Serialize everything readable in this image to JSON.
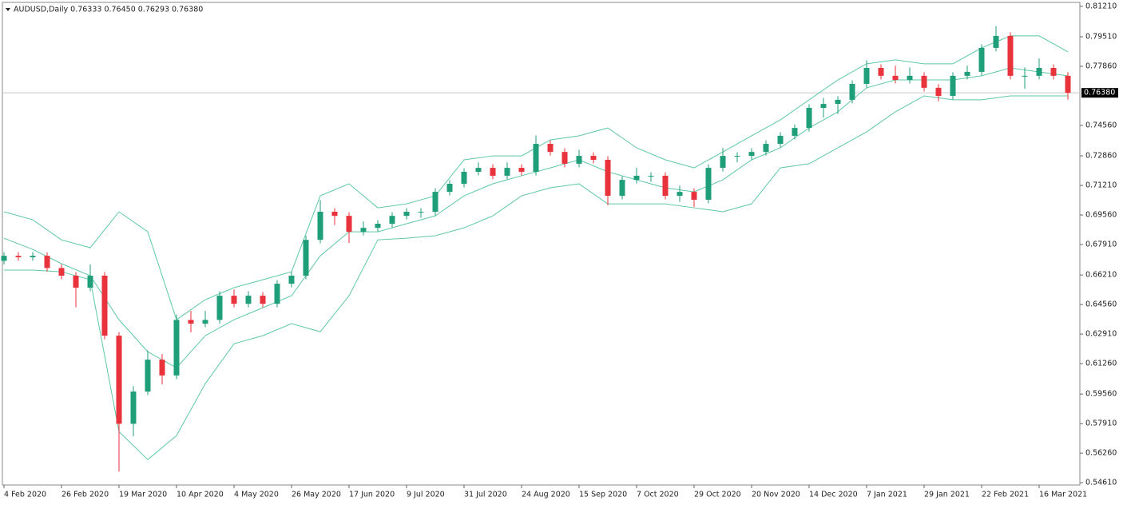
{
  "chart_data": {
    "type": "candlestick",
    "title": "AUDUSD,Daily  0.76333 0.76450 0.76293 0.76380",
    "up_color": "#1f9e7a",
    "down_color": "#e8323c",
    "candles": {
      "x": [
        0,
        4,
        8,
        12,
        16,
        20,
        24,
        28,
        32,
        36,
        40,
        44,
        48,
        52,
        56,
        60,
        64,
        68,
        72,
        76,
        80,
        84,
        88,
        92,
        96,
        100,
        104,
        108,
        112,
        116,
        120,
        124,
        128,
        132,
        136,
        140,
        144,
        148,
        152,
        156,
        160,
        164,
        168,
        172,
        176,
        180,
        184,
        188,
        192,
        196,
        200,
        204,
        208,
        212,
        216,
        220,
        224,
        228,
        232,
        236,
        240,
        244,
        248,
        252,
        256,
        260,
        264,
        268,
        272,
        276,
        280,
        284,
        288,
        292,
        296
      ],
      "open": [
        0.67,
        0.6728,
        0.672,
        0.6728,
        0.666,
        0.6617,
        0.655,
        0.6617,
        0.6282,
        0.579,
        0.597,
        0.6148,
        0.606,
        0.637,
        0.6349,
        0.637,
        0.6505,
        0.646,
        0.6505,
        0.646,
        0.6572,
        0.6617,
        0.6817,
        0.6974,
        0.6951,
        0.6862,
        0.6884,
        0.6907,
        0.6951,
        0.6974,
        0.6974,
        0.7085,
        0.713,
        0.7197,
        0.7219,
        0.7175,
        0.7219,
        0.7197,
        0.7353,
        0.7308,
        0.7242,
        0.7286,
        0.7264,
        0.7063,
        0.7152,
        0.7175,
        0.7175,
        0.7063,
        0.7085,
        0.7041,
        0.7219,
        0.7286,
        0.7286,
        0.7308,
        0.7353,
        0.7398,
        0.7442,
        0.7554,
        0.7576,
        0.7599,
        0.7688,
        0.7777,
        0.7733,
        0.771,
        0.7733,
        0.7666,
        0.7621,
        0.7733,
        0.7755,
        0.7889,
        0.7956,
        0.7733,
        0.7733,
        0.7777,
        0.7733
      ],
      "high": [
        0.6748,
        0.6748,
        0.6748,
        0.6748,
        0.668,
        0.6637,
        0.668,
        0.6637,
        0.6302,
        0.6,
        0.62,
        0.618,
        0.64,
        0.642,
        0.642,
        0.653,
        0.654,
        0.653,
        0.6525,
        0.6592,
        0.664,
        0.684,
        0.704,
        0.6994,
        0.6971,
        0.692,
        0.6927,
        0.6971,
        0.6994,
        0.6994,
        0.7105,
        0.715,
        0.7217,
        0.725,
        0.7239,
        0.725,
        0.7239,
        0.74,
        0.7373,
        0.7328,
        0.732,
        0.7306,
        0.7284,
        0.7172,
        0.722,
        0.7195,
        0.7195,
        0.712,
        0.7105,
        0.7239,
        0.733,
        0.7306,
        0.7328,
        0.7373,
        0.7418,
        0.7462,
        0.7574,
        0.761,
        0.7619,
        0.7708,
        0.782,
        0.7797,
        0.779,
        0.778,
        0.7753,
        0.7686,
        0.7753,
        0.779,
        0.7909,
        0.801,
        0.7976,
        0.778,
        0.783,
        0.7797,
        0.7753
      ],
      "low": [
        0.668,
        0.67,
        0.67,
        0.664,
        0.6597,
        0.644,
        0.653,
        0.6262,
        0.5523,
        0.572,
        0.595,
        0.601,
        0.604,
        0.63,
        0.6329,
        0.635,
        0.644,
        0.644,
        0.644,
        0.644,
        0.6552,
        0.6597,
        0.6797,
        0.69,
        0.68,
        0.6842,
        0.6864,
        0.6887,
        0.6931,
        0.694,
        0.6954,
        0.7065,
        0.711,
        0.7177,
        0.7155,
        0.7155,
        0.7177,
        0.7177,
        0.7288,
        0.7222,
        0.7222,
        0.7244,
        0.701,
        0.7043,
        0.7132,
        0.714,
        0.7043,
        0.703,
        0.7,
        0.7021,
        0.7199,
        0.725,
        0.7266,
        0.7288,
        0.7333,
        0.7378,
        0.7422,
        0.75,
        0.752,
        0.7579,
        0.7668,
        0.7713,
        0.769,
        0.769,
        0.7646,
        0.759,
        0.7601,
        0.7713,
        0.7735,
        0.7869,
        0.7713,
        0.766,
        0.7713,
        0.7713,
        0.76
      ],
      "close": [
        0.6728,
        0.672,
        0.6728,
        0.666,
        0.6617,
        0.655,
        0.6617,
        0.6282,
        0.579,
        0.597,
        0.6148,
        0.606,
        0.637,
        0.6349,
        0.637,
        0.6505,
        0.646,
        0.6505,
        0.646,
        0.6572,
        0.6617,
        0.6817,
        0.6974,
        0.6951,
        0.6862,
        0.6884,
        0.6907,
        0.6951,
        0.6974,
        0.6974,
        0.7085,
        0.713,
        0.7197,
        0.7219,
        0.7175,
        0.7219,
        0.7197,
        0.7353,
        0.7308,
        0.7242,
        0.7286,
        0.7264,
        0.7063,
        0.7152,
        0.7175,
        0.7175,
        0.7063,
        0.7085,
        0.7041,
        0.7219,
        0.7286,
        0.7286,
        0.7308,
        0.7353,
        0.7398,
        0.7442,
        0.7554,
        0.7576,
        0.7599,
        0.7688,
        0.7777,
        0.7733,
        0.771,
        0.7733,
        0.7666,
        0.7621,
        0.7733,
        0.7755,
        0.7889,
        0.7956,
        0.7733,
        0.7733,
        0.7777,
        0.7733,
        0.7638
      ]
    },
    "bands": {
      "color": "#5ec8a2",
      "x": [
        0,
        8,
        16,
        24,
        32,
        40,
        48,
        56,
        64,
        72,
        80,
        88,
        96,
        104,
        112,
        120,
        128,
        136,
        144,
        152,
        160,
        168,
        176,
        184,
        192,
        200,
        208,
        216,
        224,
        232,
        240,
        248,
        256,
        264,
        272,
        280,
        288,
        296
      ],
      "upper": [
        0.6974,
        0.6929,
        0.6817,
        0.6773,
        0.6974,
        0.6862,
        0.6371,
        0.6483,
        0.655,
        0.6594,
        0.6639,
        0.7063,
        0.713,
        0.6996,
        0.7018,
        0.7063,
        0.7264,
        0.7286,
        0.7286,
        0.7375,
        0.7398,
        0.7442,
        0.7331,
        0.7264,
        0.7219,
        0.7308,
        0.7398,
        0.7487,
        0.7599,
        0.771,
        0.78,
        0.7822,
        0.78,
        0.78,
        0.7889,
        0.7956,
        0.7956,
        0.7867
      ],
      "middle": [
        0.6826,
        0.6764,
        0.6684,
        0.6617,
        0.6371,
        0.6192,
        0.6103,
        0.6282,
        0.6371,
        0.6438,
        0.6505,
        0.6728,
        0.6862,
        0.6862,
        0.6907,
        0.6951,
        0.7063,
        0.713,
        0.7175,
        0.7219,
        0.7264,
        0.7197,
        0.7152,
        0.7108,
        0.7085,
        0.7152,
        0.7264,
        0.7331,
        0.7442,
        0.7532,
        0.7666,
        0.771,
        0.771,
        0.771,
        0.7733,
        0.7777,
        0.7755,
        0.7733
      ],
      "lower": [
        0.6648,
        0.6648,
        0.6639,
        0.6594,
        0.5746,
        0.559,
        0.5724,
        0.6014,
        0.6237,
        0.6282,
        0.6349,
        0.6304,
        0.6505,
        0.6817,
        0.6826,
        0.684,
        0.6884,
        0.6951,
        0.7063,
        0.7108,
        0.713,
        0.7018,
        0.7018,
        0.7018,
        0.6996,
        0.6974,
        0.7018,
        0.7219,
        0.7242,
        0.7331,
        0.742,
        0.7532,
        0.7621,
        0.7599,
        0.7599,
        0.7621,
        0.7621,
        0.7621
      ]
    },
    "current_price": {
      "value": 0.7638,
      "label": "0.76380"
    },
    "xlim": [
      0,
      299
    ],
    "ylim": [
      0.5457,
      0.8134
    ],
    "xticks": [
      {
        "value": 0,
        "label": "4 Feb 2020"
      },
      {
        "value": 16,
        "label": "26 Feb 2020"
      },
      {
        "value": 32,
        "label": "19 Mar 2020"
      },
      {
        "value": 48,
        "label": "10 Apr 2020"
      },
      {
        "value": 64,
        "label": "4 May 2020"
      },
      {
        "value": 80,
        "label": "26 May 2020"
      },
      {
        "value": 96,
        "label": "17 Jun 2020"
      },
      {
        "value": 112,
        "label": "9 Jul 2020"
      },
      {
        "value": 128,
        "label": "31 Jul 2020"
      },
      {
        "value": 144,
        "label": "24 Aug 2020"
      },
      {
        "value": 160,
        "label": "15 Sep 2020"
      },
      {
        "value": 176,
        "label": "7 Oct 2020"
      },
      {
        "value": 192,
        "label": "29 Oct 2020"
      },
      {
        "value": 208,
        "label": "20 Nov 2020"
      },
      {
        "value": 224,
        "label": "14 Dec 2020"
      },
      {
        "value": 240,
        "label": "7 Jan 2021"
      },
      {
        "value": 256,
        "label": "29 Jan 2021"
      },
      {
        "value": 272,
        "label": "22 Feb 2021"
      },
      {
        "value": 288,
        "label": "16 Mar 2021"
      }
    ],
    "yticks": [
      {
        "value": 0.8121,
        "label": "0.81210"
      },
      {
        "value": 0.7951,
        "label": "0.79510"
      },
      {
        "value": 0.7786,
        "label": "0.77860"
      },
      {
        "value": 0.7456,
        "label": "0.74560"
      },
      {
        "value": 0.7286,
        "label": "0.72860"
      },
      {
        "value": 0.7121,
        "label": "0.71210"
      },
      {
        "value": 0.6956,
        "label": "0.69560"
      },
      {
        "value": 0.6791,
        "label": "0.67910"
      },
      {
        "value": 0.6621,
        "label": "0.66210"
      },
      {
        "value": 0.6456,
        "label": "0.64560"
      },
      {
        "value": 0.6291,
        "label": "0.62910"
      },
      {
        "value": 0.6126,
        "label": "0.61260"
      },
      {
        "value": 0.5956,
        "label": "0.59560"
      },
      {
        "value": 0.5791,
        "label": "0.57910"
      },
      {
        "value": 0.5626,
        "label": "0.56260"
      },
      {
        "value": 0.5461,
        "label": "0.54610"
      }
    ]
  }
}
